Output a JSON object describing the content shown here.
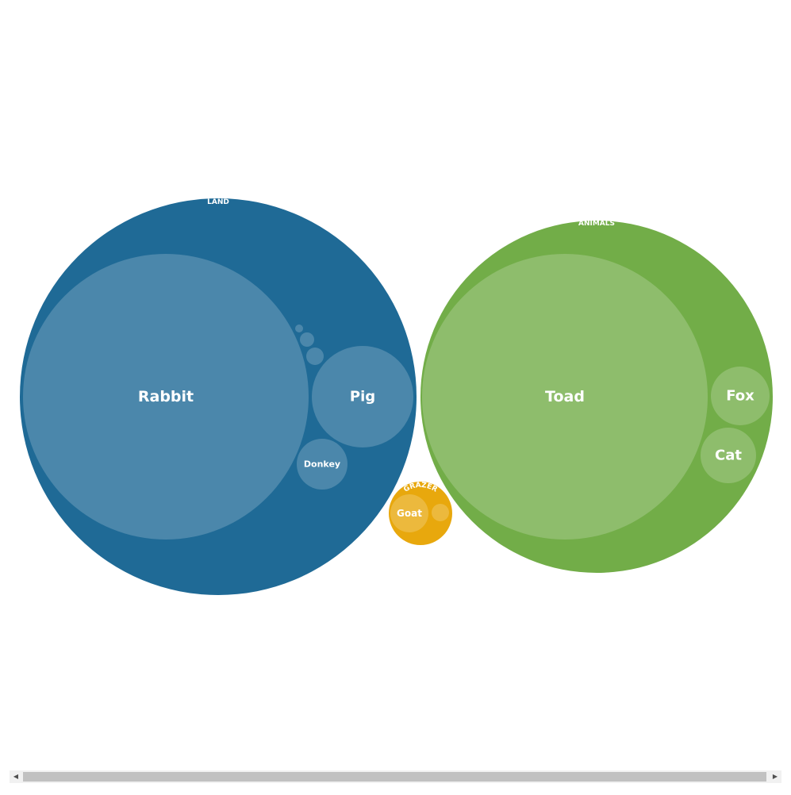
{
  "chart_data": {
    "type": "packed-bubble",
    "title": "",
    "groups": [
      {
        "name": "LAND",
        "color": "#1f6a96",
        "children": [
          {
            "name": "Rabbit",
            "value": 100
          },
          {
            "name": "Pig",
            "value": 12.8
          },
          {
            "name": "Donkey",
            "value": 3.1
          },
          {
            "name": "",
            "value": 0.4
          },
          {
            "name": "",
            "value": 0.25
          },
          {
            "name": "",
            "value": 0.08
          }
        ]
      },
      {
        "name": "ANIMALS",
        "color": "#72ad48",
        "children": [
          {
            "name": "Toad",
            "value": 100
          },
          {
            "name": "Fox",
            "value": 4.3
          },
          {
            "name": "Cat",
            "value": 3.8
          }
        ]
      },
      {
        "name": "GRAZER",
        "color": "#e8a80d",
        "children": [
          {
            "name": "Goat",
            "value": 1.6
          },
          {
            "name": "",
            "value": 0.35
          }
        ]
      }
    ]
  },
  "scrollbar": {
    "left_arrow": "◀",
    "right_arrow": "▶"
  }
}
